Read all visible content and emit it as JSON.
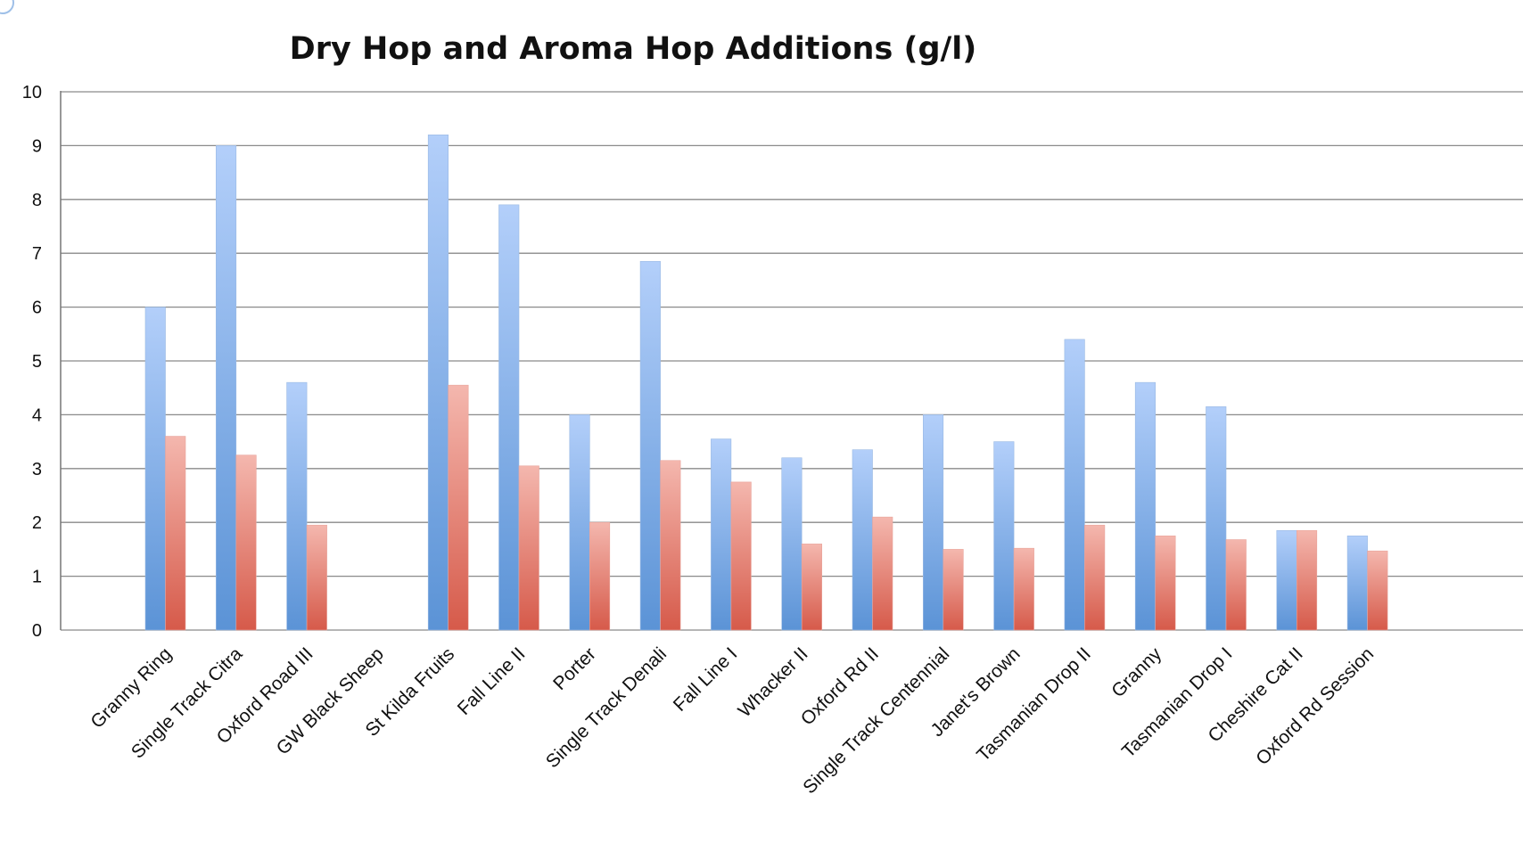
{
  "chart_data": {
    "type": "bar",
    "title": "Dry Hop and Aroma Hop Additions (g/l)",
    "xlabel": "",
    "ylabel": "",
    "ylim": [
      0,
      10
    ],
    "yticks": [
      "0",
      "1",
      "2",
      "3",
      "4",
      "5",
      "6",
      "7",
      "8",
      "9",
      "10"
    ],
    "grid": true,
    "legend": "none",
    "categories": [
      "Granny Ring",
      "Single Track Citra",
      "Oxford Road III",
      "GW Black Sheep",
      "St Kilda Fruits",
      "Fall Line II",
      "Porter",
      "Single Track Denali",
      "Fall Line I",
      "Whacker II",
      "Oxford Rd II",
      "Single Track Centennial",
      "Janet's Brown",
      "Tasmanian Drop II",
      "Granny",
      "Tasmanian Drop I",
      "Cheshire Cat II",
      "Oxford Rd Session"
    ],
    "series": [
      {
        "color": "#5b93d6",
        "color_light": "#b3cffa",
        "values": [
          6.0,
          9.0,
          4.6,
          0,
          9.2,
          7.9,
          4.0,
          6.85,
          3.55,
          3.2,
          3.35,
          4.0,
          3.5,
          5.4,
          4.6,
          4.15,
          1.85,
          1.75
        ]
      },
      {
        "color": "#d65a4a",
        "color_light": "#f4b7ae",
        "values": [
          3.6,
          3.25,
          1.95,
          0,
          4.55,
          3.05,
          2.0,
          3.15,
          2.75,
          1.6,
          2.1,
          1.5,
          1.52,
          1.95,
          1.75,
          1.68,
          1.85,
          1.47
        ]
      }
    ]
  }
}
